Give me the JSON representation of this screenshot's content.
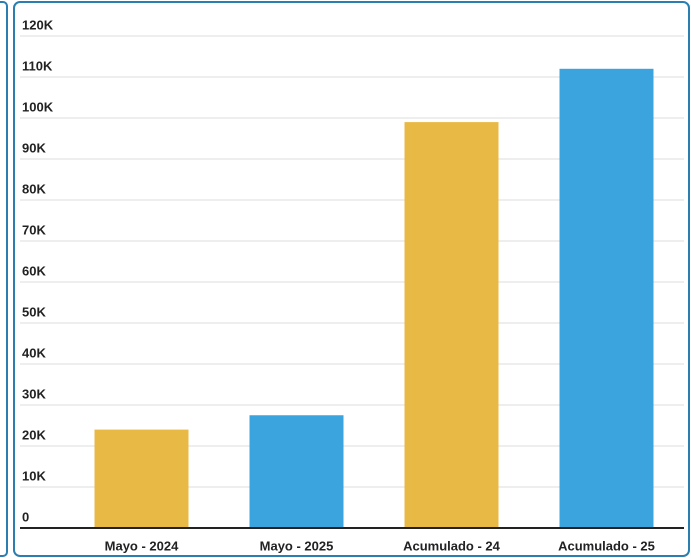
{
  "chart_data": {
    "type": "bar",
    "categories": [
      "Mayo - 2024",
      "Mayo - 2025",
      "Acumulado - 24",
      "Acumulado - 25"
    ],
    "values": [
      24000,
      27500,
      99000,
      112000
    ],
    "colors": [
      "#e8b945",
      "#3ba3de",
      "#e8b945",
      "#3ba3de"
    ],
    "ylim": [
      0,
      120000
    ],
    "yticks": [
      0,
      {
        "value": 10000,
        "label": "10K"
      },
      {
        "value": 20000,
        "label": "20K"
      },
      {
        "value": 30000,
        "label": "30K"
      },
      {
        "value": 40000,
        "label": "40K"
      },
      {
        "value": 50000,
        "label": "50K"
      },
      {
        "value": 60000,
        "label": "60K"
      },
      {
        "value": 70000,
        "label": "70K"
      },
      {
        "value": 80000,
        "label": "80K"
      },
      {
        "value": 90000,
        "label": "90K"
      },
      {
        "value": 100000,
        "label": "100K"
      },
      {
        "value": 110000,
        "label": "110K"
      },
      {
        "value": 120000,
        "label": "120K"
      }
    ],
    "grid": true
  }
}
